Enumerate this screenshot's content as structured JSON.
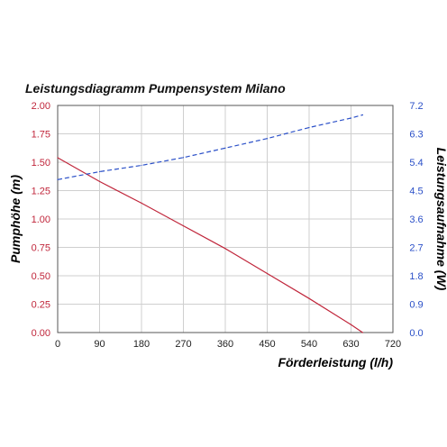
{
  "chart_data": {
    "type": "line",
    "title": "Leistungsdiagramm Pumpensystem Milano",
    "xlabel": "Förderleistung (l/h)",
    "ylabel_left": "Pumphöhe (m)",
    "ylabel_right": "Leistungsaufnahme (W)",
    "xlim": [
      0,
      720
    ],
    "ylim_left": [
      0,
      2.0
    ],
    "ylim_right": [
      0,
      7.2
    ],
    "x_ticks": [
      "0",
      "90",
      "180",
      "270",
      "360",
      "450",
      "540",
      "630",
      "720"
    ],
    "y_left_ticks": [
      "0.00",
      "0.25",
      "0.50",
      "0.75",
      "1.00",
      "1.25",
      "1.50",
      "1.75",
      "2.00"
    ],
    "y_right_ticks": [
      "0.0",
      "0.9",
      "1.8",
      "2.7",
      "3.6",
      "4.5",
      "5.4",
      "6.3",
      "7.2"
    ],
    "grid": true,
    "series": [
      {
        "name": "Pumphöhe (m)",
        "axis": "left",
        "color": "#c0263b",
        "style": "solid",
        "x": [
          0,
          90,
          180,
          270,
          360,
          450,
          540,
          630,
          655
        ],
        "y": [
          1.54,
          1.33,
          1.14,
          0.94,
          0.74,
          0.52,
          0.3,
          0.07,
          0.0
        ]
      },
      {
        "name": "Leistungsaufnahme (W)",
        "axis": "right",
        "color": "#2b50c8",
        "style": "dashed",
        "x": [
          0,
          90,
          180,
          270,
          360,
          450,
          540,
          630,
          655
        ],
        "y": [
          4.85,
          5.1,
          5.3,
          5.55,
          5.85,
          6.15,
          6.5,
          6.8,
          6.9
        ]
      }
    ],
    "colors": {
      "left_axis": "#c0263b",
      "right_axis": "#2b50c8",
      "grid": "#cfcfcf",
      "frame": "#555555"
    }
  }
}
